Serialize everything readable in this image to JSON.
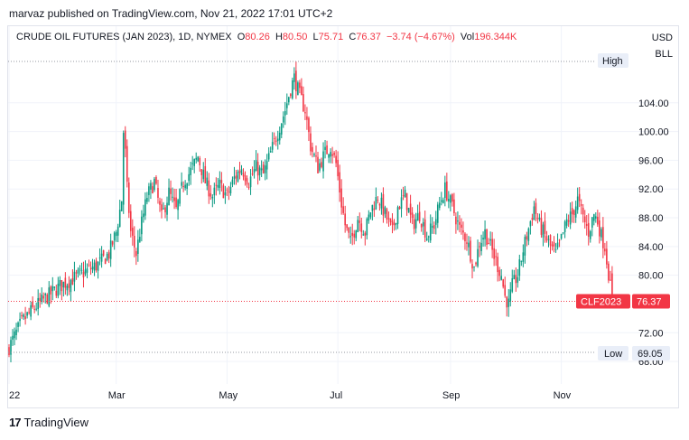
{
  "header": {
    "published": "marvaz published on TradingView.com, Nov 21, 2022 17:01 UTC+2"
  },
  "legend": {
    "symbol": "CRUDE OIL FUTURES (JAN 2023), 1D, NYMEX",
    "o_key": "O",
    "o_val": "80.26",
    "h_key": "H",
    "h_val": "80.50",
    "l_key": "L",
    "l_val": "75.71",
    "c_key": "C",
    "c_val": "76.37",
    "change": "−3.74 (−4.67%)",
    "vol_key": "Vol",
    "vol_val": "196.344K"
  },
  "currency": {
    "line1": "USD",
    "line2": "BLL"
  },
  "footer": {
    "brand": "TradingView",
    "logo": "17"
  },
  "colors": {
    "up": "#089981",
    "down": "#f23645",
    "grid": "#f0f3fa",
    "text": "#131722"
  },
  "chart_data": {
    "type": "candlestick",
    "y_ticks": [
      "104.00",
      "100.00",
      "96.00",
      "92.00",
      "88.00",
      "84.00",
      "80.00",
      "72.00",
      "68.00"
    ],
    "y_tick_values": [
      104,
      100,
      96,
      92,
      88,
      84,
      80,
      72,
      68
    ],
    "ylim": [
      65.5,
      109.5
    ],
    "x_ticks": [
      {
        "label": "22",
        "t": 0
      },
      {
        "label": "Mar",
        "t": 59
      },
      {
        "label": "May",
        "t": 120
      },
      {
        "label": "Jul",
        "t": 181
      },
      {
        "label": "Sep",
        "t": 243
      },
      {
        "label": "Nov",
        "t": 304
      }
    ],
    "xlim": [
      0,
      340
    ],
    "high": {
      "label": "High",
      "value": 108.0
    },
    "low": {
      "label": "Low",
      "value": "69.05"
    },
    "last": {
      "symbol": "CLF2023",
      "value": "76.37"
    },
    "close_path": [
      [
        0,
        70.0
      ],
      [
        7,
        73.5
      ],
      [
        14,
        75.5
      ],
      [
        21,
        77.0
      ],
      [
        28,
        78.5
      ],
      [
        35,
        79.5
      ],
      [
        42,
        80.5
      ],
      [
        49,
        81.5
      ],
      [
        55,
        83.0
      ],
      [
        59,
        86.0
      ],
      [
        62,
        90.5
      ],
      [
        63,
        100.0
      ],
      [
        64,
        97.0
      ],
      [
        65,
        92.0
      ],
      [
        67,
        86.0
      ],
      [
        70,
        83.0
      ],
      [
        72,
        86.0
      ],
      [
        76,
        91.0
      ],
      [
        80,
        93.0
      ],
      [
        84,
        88.0
      ],
      [
        88,
        91.5
      ],
      [
        92,
        89.0
      ],
      [
        96,
        93.0
      ],
      [
        100,
        94.5
      ],
      [
        104,
        96.5
      ],
      [
        108,
        93.0
      ],
      [
        112,
        91.0
      ],
      [
        116,
        92.5
      ],
      [
        120,
        91.0
      ],
      [
        124,
        93.5
      ],
      [
        128,
        95.0
      ],
      [
        132,
        93.0
      ],
      [
        136,
        95.0
      ],
      [
        140,
        94.0
      ],
      [
        144,
        97.0
      ],
      [
        148,
        100.0
      ],
      [
        152,
        103.0
      ],
      [
        155,
        106.0
      ],
      [
        157,
        107.5
      ],
      [
        160,
        105.0
      ],
      [
        163,
        103.0
      ],
      [
        166,
        98.0
      ],
      [
        170,
        95.0
      ],
      [
        174,
        97.0
      ],
      [
        177,
        98.0
      ],
      [
        180,
        95.5
      ],
      [
        183,
        90.0
      ],
      [
        185,
        87.0
      ],
      [
        188,
        84.5
      ],
      [
        192,
        88.0
      ],
      [
        196,
        86.0
      ],
      [
        199,
        89.0
      ],
      [
        203,
        91.0
      ],
      [
        207,
        88.5
      ],
      [
        211,
        86.0
      ],
      [
        214,
        89.5
      ],
      [
        218,
        91.0
      ],
      [
        222,
        87.0
      ],
      [
        226,
        88.5
      ],
      [
        230,
        85.5
      ],
      [
        234,
        87.0
      ],
      [
        237,
        90.0
      ],
      [
        240,
        92.0
      ],
      [
        244,
        89.5
      ],
      [
        248,
        86.5
      ],
      [
        252,
        85.0
      ],
      [
        256,
        81.0
      ],
      [
        259,
        84.5
      ],
      [
        262,
        86.0
      ],
      [
        265,
        84.0
      ],
      [
        268,
        82.0
      ],
      [
        271,
        80.0
      ],
      [
        273,
        77.0
      ],
      [
        275,
        76.0
      ],
      [
        277,
        78.5
      ],
      [
        280,
        80.0
      ],
      [
        283,
        83.5
      ],
      [
        286,
        86.5
      ],
      [
        289,
        89.5
      ],
      [
        292,
        87.0
      ],
      [
        295,
        85.5
      ],
      [
        298,
        84.0
      ],
      [
        301,
        83.0
      ],
      [
        304,
        85.0
      ],
      [
        307,
        87.5
      ],
      [
        310,
        88.5
      ],
      [
        313,
        90.5
      ],
      [
        316,
        88.0
      ],
      [
        319,
        86.0
      ],
      [
        322,
        88.5
      ],
      [
        324,
        87.5
      ],
      [
        326,
        85.5
      ],
      [
        328,
        84.0
      ],
      [
        330,
        80.3
      ],
      [
        332,
        76.37
      ]
    ]
  }
}
